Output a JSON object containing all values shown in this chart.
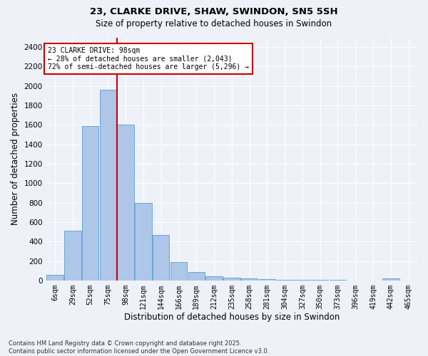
{
  "title": "23, CLARKE DRIVE, SHAW, SWINDON, SN5 5SH",
  "subtitle": "Size of property relative to detached houses in Swindon",
  "xlabel": "Distribution of detached houses by size in Swindon",
  "ylabel": "Number of detached properties",
  "categories": [
    "6sqm",
    "29sqm",
    "52sqm",
    "75sqm",
    "98sqm",
    "121sqm",
    "144sqm",
    "166sqm",
    "189sqm",
    "212sqm",
    "235sqm",
    "258sqm",
    "281sqm",
    "304sqm",
    "327sqm",
    "350sqm",
    "373sqm",
    "396sqm",
    "419sqm",
    "442sqm",
    "465sqm"
  ],
  "values": [
    60,
    510,
    1590,
    1960,
    1600,
    800,
    470,
    190,
    90,
    40,
    25,
    20,
    10,
    8,
    5,
    5,
    3,
    2,
    2,
    20,
    2
  ],
  "bar_color": "#aec6e8",
  "bar_edge_color": "#5a9fd4",
  "red_line_index": 4,
  "annotation_text": "23 CLARKE DRIVE: 98sqm\n← 28% of detached houses are smaller (2,043)\n72% of semi-detached houses are larger (5,296) →",
  "annotation_box_color": "#ffffff",
  "annotation_box_edge_color": "#cc0000",
  "ylim": [
    0,
    2500
  ],
  "yticks": [
    0,
    200,
    400,
    600,
    800,
    1000,
    1200,
    1400,
    1600,
    1800,
    2000,
    2200,
    2400
  ],
  "background_color": "#eef2f8",
  "grid_color": "#ffffff",
  "footer_line1": "Contains HM Land Registry data © Crown copyright and database right 2025.",
  "footer_line2": "Contains public sector information licensed under the Open Government Licence v3.0."
}
